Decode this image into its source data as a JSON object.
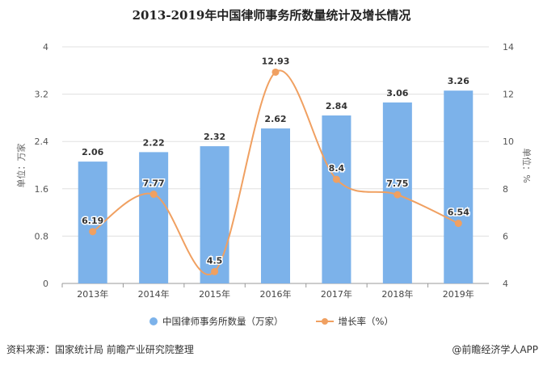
{
  "chart_data": {
    "type": "bar+line",
    "title": "2013-2019年中国律师事务所数量统计及增长情况",
    "categories": [
      "2013年",
      "2014年",
      "2015年",
      "2016年",
      "2017年",
      "2018年",
      "2019年"
    ],
    "series": [
      {
        "name": "中国律师事务所数量（万家）",
        "type": "bar",
        "axis": "left",
        "color": "#7cb2ea",
        "values": [
          2.06,
          2.22,
          2.32,
          2.62,
          2.84,
          3.06,
          3.26
        ]
      },
      {
        "name": "增长率（%）",
        "type": "line",
        "axis": "right",
        "color": "#f0a061",
        "smooth": true,
        "values": [
          6.19,
          7.77,
          4.5,
          12.93,
          8.4,
          7.75,
          6.54
        ]
      }
    ],
    "ylabel_left": "单位：万家",
    "ylabel_right": "单位：%",
    "ylim_left": [
      0,
      4
    ],
    "yticks_left": [
      "0",
      "0.8",
      "1.6",
      "2.4",
      "3.2",
      "4"
    ],
    "ylim_right": [
      4,
      14
    ],
    "yticks_right": [
      "4",
      "6",
      "8",
      "10",
      "12",
      "14"
    ],
    "grid": true,
    "legend_position": "bottom"
  },
  "footer": {
    "source": "资料来源：国家统计局 前瞻产业研究院整理",
    "credit": "@前瞻经济学人APP"
  }
}
